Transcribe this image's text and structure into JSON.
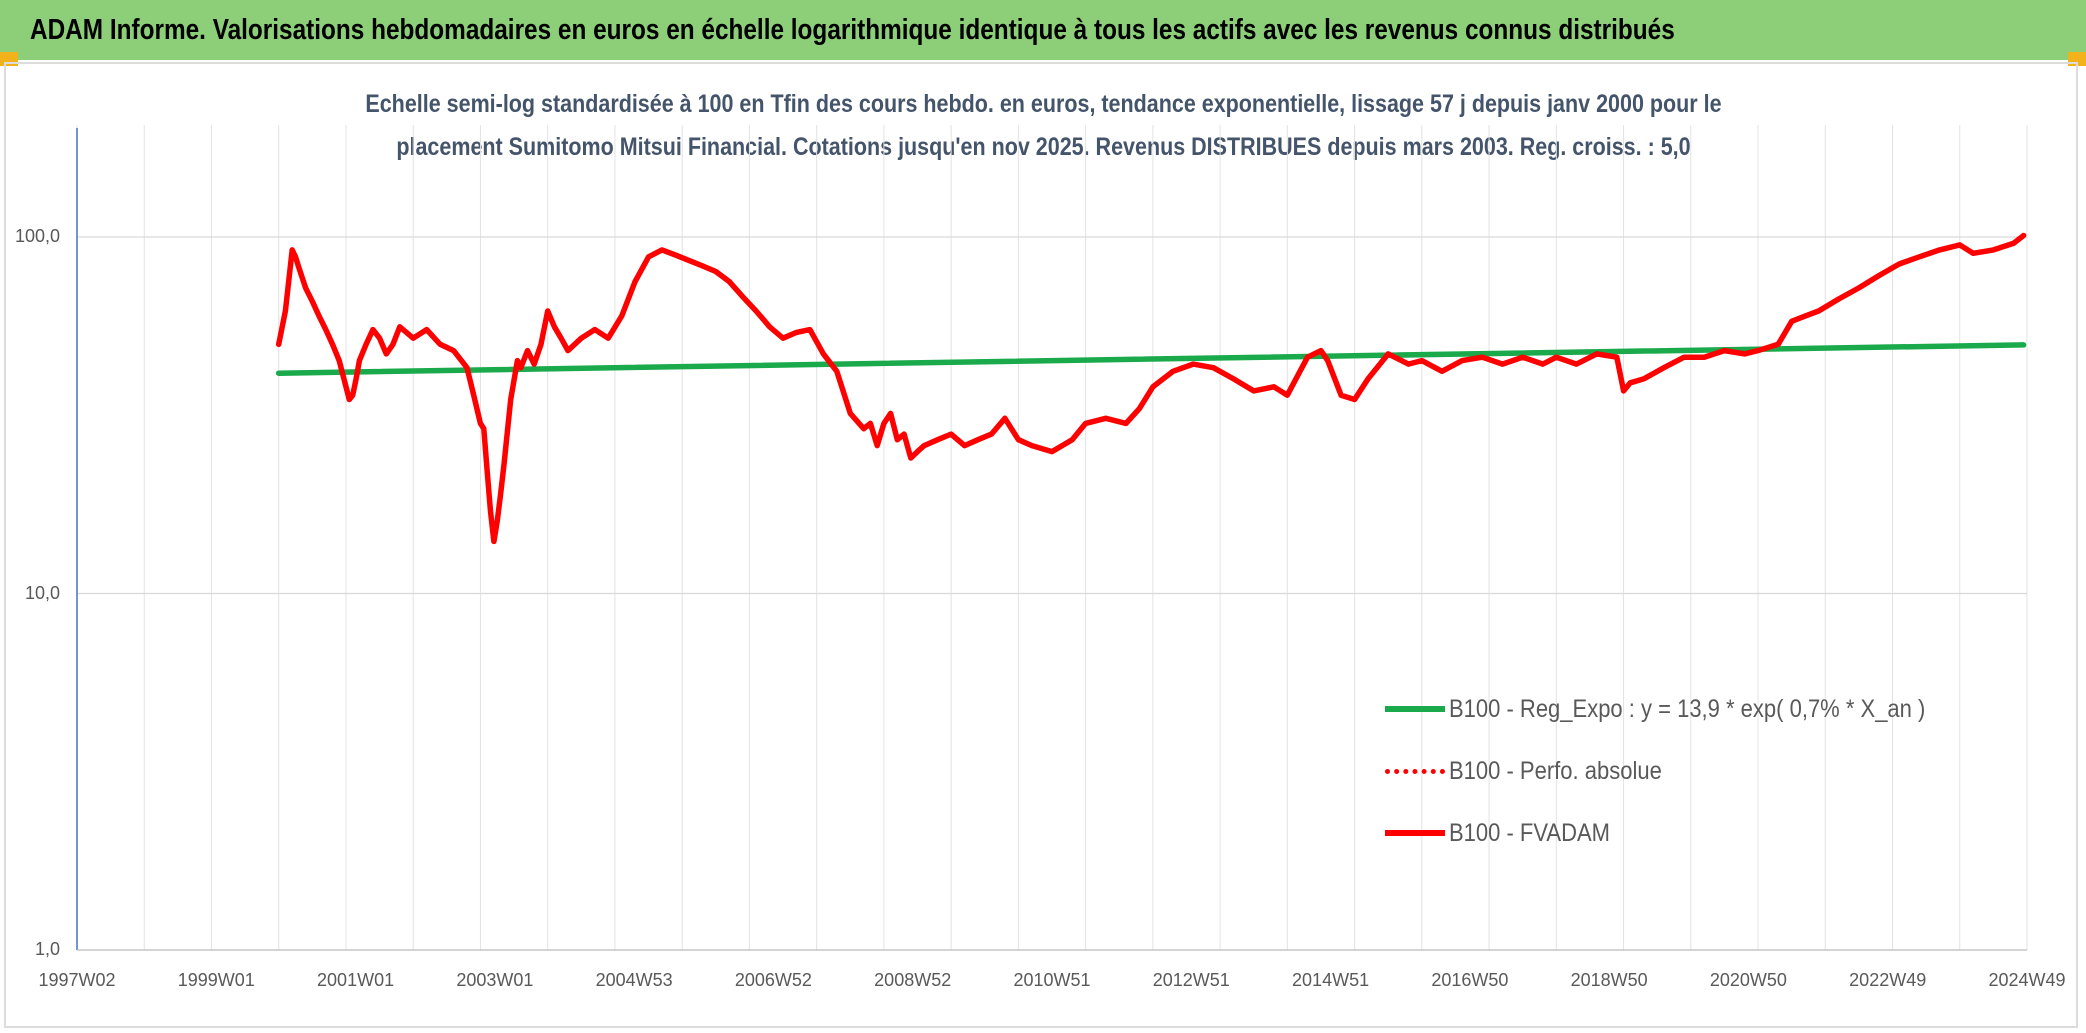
{
  "header": {
    "banner_title": "ADAM Informe. Valorisations hebdomadaires en euros en échelle logarithmique identique à tous les actifs avec les revenus connus distribués"
  },
  "chart_data": {
    "type": "line",
    "title_line1": "Echelle semi-log standardisée à 100 en Tfin des cours hebdo. en euros, tendance exponentielle, lissage 57 j depuis janv 2000 pour le",
    "title_line2": "placement Sumitomo Mitsui Financial. Cotations jusqu'en nov 2025. Revenus DISTRIBUES depuis mars 2003. Reg. croiss. : 5,0",
    "y_scale": "log",
    "ylim": [
      1,
      100
    ],
    "y_ticks": [
      {
        "value": 100,
        "label": "100,0"
      },
      {
        "value": 10,
        "label": "10,0"
      },
      {
        "value": 1,
        "label": "1,0"
      }
    ],
    "x_ticks": [
      "1997W02",
      "1999W01",
      "2001W01",
      "2003W01",
      "2004W53",
      "2006W52",
      "2008W52",
      "2010W51",
      "2012W51",
      "2014W51",
      "2016W50",
      "2018W50",
      "2020W50",
      "2022W49",
      "2024W49"
    ],
    "xlim": [
      1997.0,
      2026.0
    ],
    "grid": true,
    "legend_position": "bottom-right",
    "series": [
      {
        "name": "B100 - Reg_Expo : y = 13,9 * exp( 0,7% *  X_an )",
        "style": "solid",
        "color": "#1aaa4c",
        "x": [
          2000.0,
          2025.95
        ],
        "y": [
          41.5,
          49.8
        ]
      },
      {
        "name": "B100 - Perfo. absolue",
        "style": "dotted",
        "color": "#ff0000",
        "x": [],
        "y": []
      },
      {
        "name": "B100 - FVADAM",
        "style": "solid",
        "color": "#ff0000",
        "x": [
          2000.0,
          2000.1,
          2000.2,
          2000.25,
          2000.3,
          2000.4,
          2000.5,
          2000.6,
          2000.7,
          2000.8,
          2000.9,
          2001.0,
          2001.05,
          2001.1,
          2001.15,
          2001.2,
          2001.3,
          2001.4,
          2001.5,
          2001.6,
          2001.7,
          2001.8,
          2002.0,
          2002.2,
          2002.4,
          2002.6,
          2002.8,
          2002.9,
          2003.0,
          2003.05,
          2003.1,
          2003.15,
          2003.2,
          2003.25,
          2003.3,
          2003.35,
          2003.45,
          2003.55,
          2003.6,
          2003.7,
          2003.8,
          2003.9,
          2004.0,
          2004.1,
          2004.2,
          2004.3,
          2004.5,
          2004.7,
          2004.9,
          2005.1,
          2005.3,
          2005.5,
          2005.7,
          2005.9,
          2006.1,
          2006.3,
          2006.5,
          2006.7,
          2006.9,
          2007.1,
          2007.3,
          2007.5,
          2007.7,
          2007.9,
          2008.1,
          2008.3,
          2008.5,
          2008.7,
          2008.8,
          2008.9,
          2009.0,
          2009.1,
          2009.2,
          2009.3,
          2009.4,
          2009.5,
          2009.6,
          2009.8,
          2010.0,
          2010.2,
          2010.4,
          2010.6,
          2010.8,
          2011.0,
          2011.2,
          2011.5,
          2011.8,
          2012.0,
          2012.3,
          2012.6,
          2012.8,
          2013.0,
          2013.3,
          2013.6,
          2013.9,
          2014.2,
          2014.5,
          2014.8,
          2015.0,
          2015.3,
          2015.5,
          2015.6,
          2015.8,
          2016.0,
          2016.2,
          2016.5,
          2016.8,
          2017.0,
          2017.3,
          2017.6,
          2017.9,
          2018.2,
          2018.5,
          2018.8,
          2019.0,
          2019.3,
          2019.6,
          2019.9,
          2020.0,
          2020.1,
          2020.3,
          2020.6,
          2020.9,
          2021.2,
          2021.5,
          2021.8,
          2022.0,
          2022.3,
          2022.5,
          2022.7,
          2022.9,
          2023.2,
          2023.5,
          2023.8,
          2024.1,
          2024.4,
          2024.7,
          2025.0,
          2025.2,
          2025.5,
          2025.8,
          2025.95
        ],
        "y": [
          50,
          62,
          92,
          88,
          82,
          72,
          66,
          60,
          55,
          50,
          45,
          38,
          35,
          36,
          40,
          45,
          50,
          55,
          52,
          47,
          50,
          56,
          52,
          55,
          50,
          48,
          43,
          36,
          30,
          29,
          22,
          17,
          14,
          16,
          19,
          23,
          35,
          45,
          43,
          48,
          44,
          50,
          62,
          56,
          52,
          48,
          52,
          55,
          52,
          60,
          75,
          88,
          92,
          89,
          86,
          83,
          80,
          75,
          68,
          62,
          56,
          52,
          54,
          55,
          47,
          42,
          32,
          29,
          30,
          26,
          30,
          32,
          27,
          28,
          24,
          25,
          26,
          27,
          28,
          26,
          27,
          28,
          31,
          27,
          26,
          25,
          27,
          30,
          31,
          30,
          33,
          38,
          42,
          44,
          43,
          40,
          37,
          38,
          36,
          46,
          48,
          45,
          36,
          35,
          40,
          47,
          44,
          45,
          42,
          45,
          46,
          44,
          46,
          44,
          46,
          44,
          47,
          46,
          37,
          39,
          40,
          43,
          46,
          46,
          48,
          47,
          48,
          50,
          58,
          60,
          62,
          67,
          72,
          78,
          84,
          88,
          92,
          95,
          90,
          92,
          96,
          101
        ]
      }
    ]
  }
}
